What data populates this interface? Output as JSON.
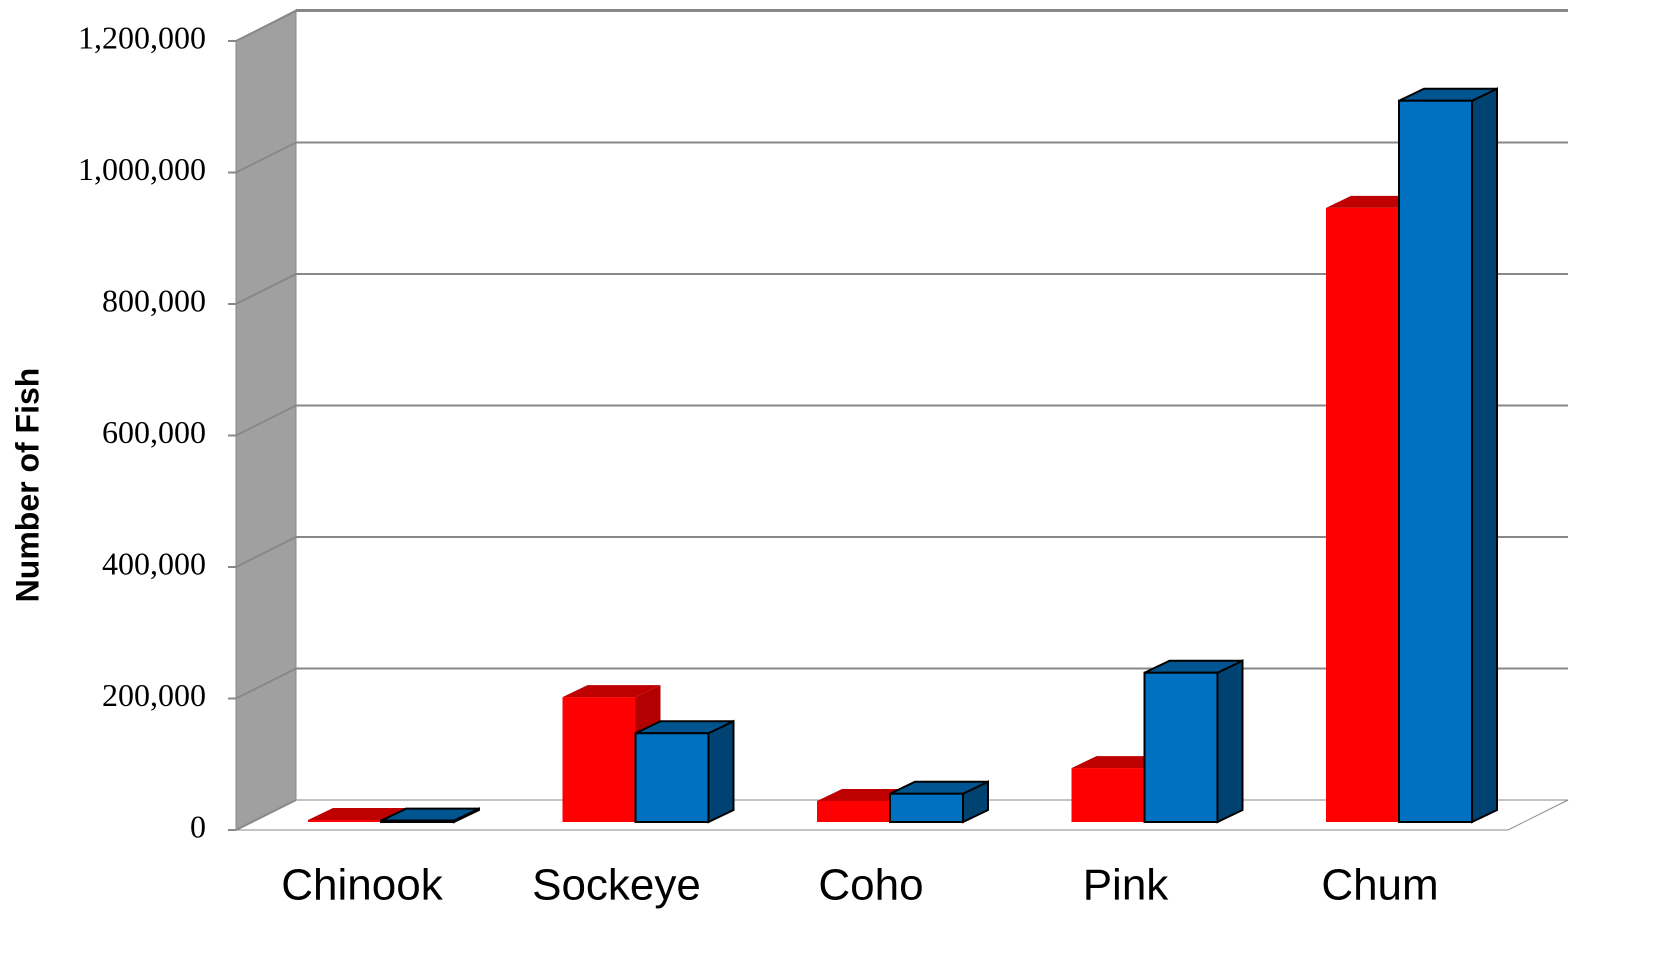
{
  "chart_data": {
    "type": "bar3d",
    "y_label": "Number of Fish",
    "categories": [
      "Chinook",
      "Sockeye",
      "Coho",
      "Pink",
      "Chum"
    ],
    "series": [
      {
        "color": "#ff0000",
        "values": [
          3000,
          190000,
          32000,
          82000,
          934000
        ]
      },
      {
        "color": "#0070c0",
        "values": [
          2000,
          135000,
          43000,
          227000,
          1097000
        ]
      }
    ],
    "ylim": [
      0,
      1200000
    ],
    "yticks": [
      0,
      {
        "value": 200000,
        "label": "200,000"
      },
      {
        "value": 400000,
        "label": "400,000"
      },
      {
        "value": 600000,
        "label": "600,000"
      },
      {
        "value": 800000,
        "label": "800,000"
      },
      {
        "value": 1000000,
        "label": "1,000,000"
      },
      {
        "value": 1200000,
        "label": "1,200,000"
      }
    ],
    "grid": true
  }
}
